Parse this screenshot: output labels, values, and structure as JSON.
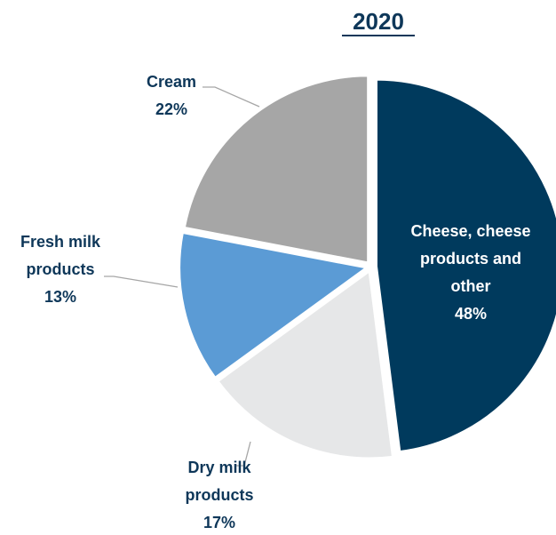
{
  "chart_data": {
    "type": "pie",
    "title": "2020",
    "slices": [
      {
        "label_lines": [
          "Cheese, cheese",
          "products and",
          "other"
        ],
        "percent_label": "48%",
        "value": 48,
        "color": "#003a5d",
        "label_inside": true
      },
      {
        "label_lines": [
          "Dry milk",
          "products"
        ],
        "percent_label": "17%",
        "value": 17,
        "color": "#e6e7e8",
        "label_inside": false
      },
      {
        "label_lines": [
          "Fresh milk",
          "products"
        ],
        "percent_label": "13%",
        "value": 13,
        "color": "#5b9bd5",
        "label_inside": false
      },
      {
        "label_lines": [
          "Cream"
        ],
        "percent_label": "22%",
        "value": 22,
        "color": "#a6a6a6",
        "label_inside": false
      }
    ]
  }
}
